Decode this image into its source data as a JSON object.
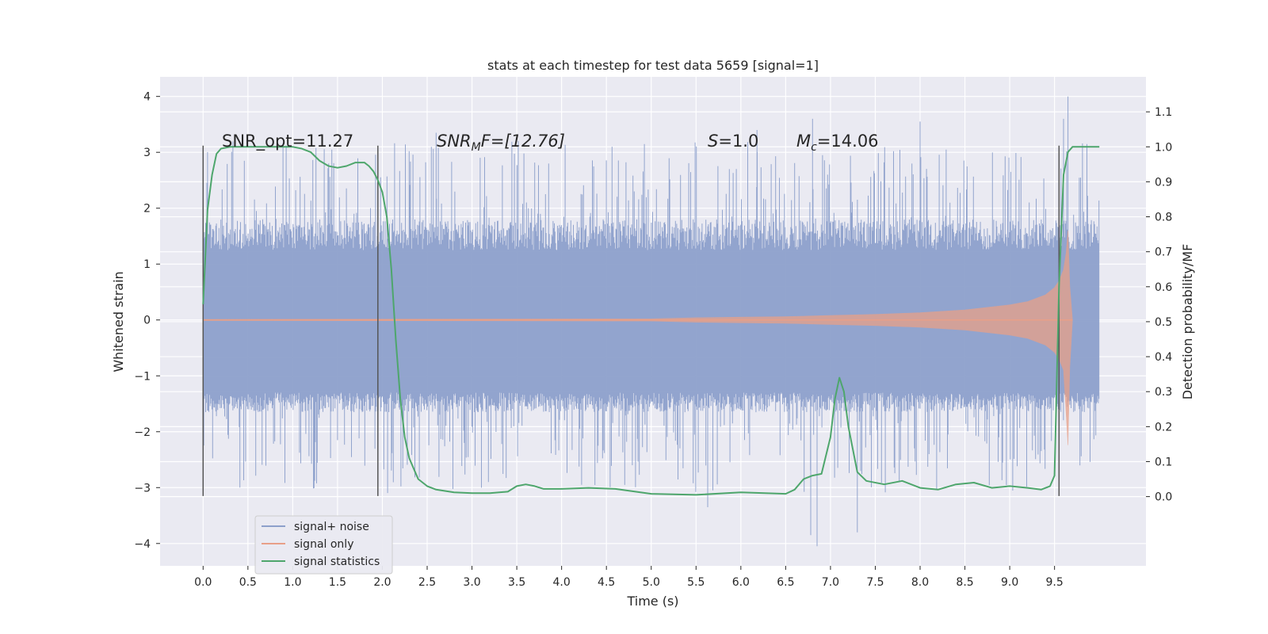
{
  "chart_data": {
    "type": "line",
    "title": "stats at each timestep for test data 5659 [signal=1]",
    "xlabel": "Time (s)",
    "ylabel_left": "Whitened strain",
    "ylabel_right": "Detection probability/MF",
    "xlim": [
      -0.48,
      10.52
    ],
    "ylim_left": [
      -4.4,
      4.35
    ],
    "ylim_right": [
      -0.198,
      1.2
    ],
    "x_ticks": [
      "0.0",
      "0.5",
      "1.0",
      "1.5",
      "2.0",
      "2.5",
      "3.0",
      "3.5",
      "4.0",
      "4.5",
      "5.0",
      "5.5",
      "6.0",
      "6.5",
      "7.0",
      "7.5",
      "8.0",
      "8.5",
      "9.0",
      "9.5"
    ],
    "y_left_ticks": [
      "4",
      "3",
      "2",
      "1",
      "0",
      "−1",
      "−2",
      "−3",
      "−4"
    ],
    "y_right_ticks": [
      "1.1",
      "1.0",
      "0.9",
      "0.8",
      "0.7",
      "0.6",
      "0.5",
      "0.4",
      "0.3",
      "0.2",
      "0.1",
      "0.0"
    ],
    "grid": true,
    "legend_location": "lower-left",
    "annotations": {
      "snr_opt": "SNR_opt=11.27",
      "snr_mf_base": "SNR",
      "snr_mf_sub": "M",
      "snr_mf_rest": "F=[12.76]",
      "s_sym": "S",
      "s_val": "=1.0",
      "mc_base": "M",
      "mc_sub": "c",
      "mc_val": "=14.06"
    },
    "vlines_x": [
      0.0,
      1.95,
      9.55
    ],
    "vlines_y_range": [
      -3.15,
      3.12
    ],
    "series": [
      {
        "name": "signal+ noise",
        "axis": "left",
        "color": "#8da0cb",
        "x_range": [
          0.0,
          10.0
        ],
        "core_band": [
          -1.3,
          1.25
        ],
        "spike_band": [
          -3.1,
          3.2
        ],
        "extremes": [
          [
            5.63,
            -3.35
          ],
          [
            6.78,
            -3.85
          ],
          [
            6.85,
            -4.05
          ],
          [
            7.3,
            -3.8
          ],
          [
            9.65,
            4.0
          ],
          [
            9.6,
            3.6
          ],
          [
            2.6,
            3.35
          ],
          [
            6.18,
            3.4
          ],
          [
            6.8,
            3.6
          ],
          [
            8.0,
            3.55
          ]
        ]
      },
      {
        "name": "signal only",
        "axis": "left",
        "color": "#e8a088",
        "x": [
          0.0,
          5.0,
          5.5,
          6.0,
          6.5,
          7.0,
          7.5,
          8.0,
          8.5,
          9.0,
          9.2,
          9.4,
          9.5,
          9.55,
          9.6,
          9.63,
          9.65,
          9.67,
          9.7
        ],
        "envelope": [
          0.01,
          0.02,
          0.04,
          0.05,
          0.06,
          0.08,
          0.1,
          0.13,
          0.18,
          0.27,
          0.33,
          0.45,
          0.58,
          0.7,
          0.9,
          1.2,
          1.6,
          0.6,
          0.0
        ]
      },
      {
        "name": "signal statistics",
        "axis": "right",
        "color": "#4ea66c",
        "x": [
          0.0,
          0.05,
          0.1,
          0.15,
          0.2,
          0.3,
          0.5,
          0.8,
          1.0,
          1.1,
          1.2,
          1.3,
          1.4,
          1.5,
          1.6,
          1.7,
          1.8,
          1.85,
          1.9,
          1.95,
          2.0,
          2.05,
          2.1,
          2.15,
          2.2,
          2.25,
          2.3,
          2.35,
          2.4,
          2.5,
          2.6,
          2.8,
          3.0,
          3.2,
          3.4,
          3.5,
          3.6,
          3.7,
          3.8,
          4.0,
          4.3,
          4.6,
          5.0,
          5.5,
          6.0,
          6.5,
          6.6,
          6.7,
          6.8,
          6.9,
          7.0,
          7.05,
          7.1,
          7.15,
          7.2,
          7.3,
          7.4,
          7.6,
          7.8,
          8.0,
          8.2,
          8.4,
          8.6,
          8.8,
          9.0,
          9.2,
          9.35,
          9.45,
          9.5,
          9.55,
          9.6,
          9.65,
          9.7,
          9.8,
          10.0
        ],
        "values": [
          0.55,
          0.82,
          0.92,
          0.98,
          0.995,
          1.0,
          1.0,
          1.0,
          1.0,
          0.995,
          0.985,
          0.96,
          0.945,
          0.94,
          0.945,
          0.955,
          0.955,
          0.945,
          0.93,
          0.905,
          0.87,
          0.8,
          0.65,
          0.45,
          0.28,
          0.17,
          0.11,
          0.08,
          0.05,
          0.03,
          0.02,
          0.012,
          0.01,
          0.01,
          0.014,
          0.03,
          0.035,
          0.03,
          0.022,
          0.022,
          0.025,
          0.022,
          0.008,
          0.005,
          0.012,
          0.008,
          0.02,
          0.05,
          0.06,
          0.065,
          0.17,
          0.28,
          0.34,
          0.3,
          0.2,
          0.07,
          0.045,
          0.035,
          0.045,
          0.025,
          0.02,
          0.035,
          0.04,
          0.025,
          0.03,
          0.025,
          0.02,
          0.03,
          0.06,
          0.6,
          0.92,
          0.985,
          1.0,
          1.0,
          1.0
        ]
      }
    ]
  }
}
